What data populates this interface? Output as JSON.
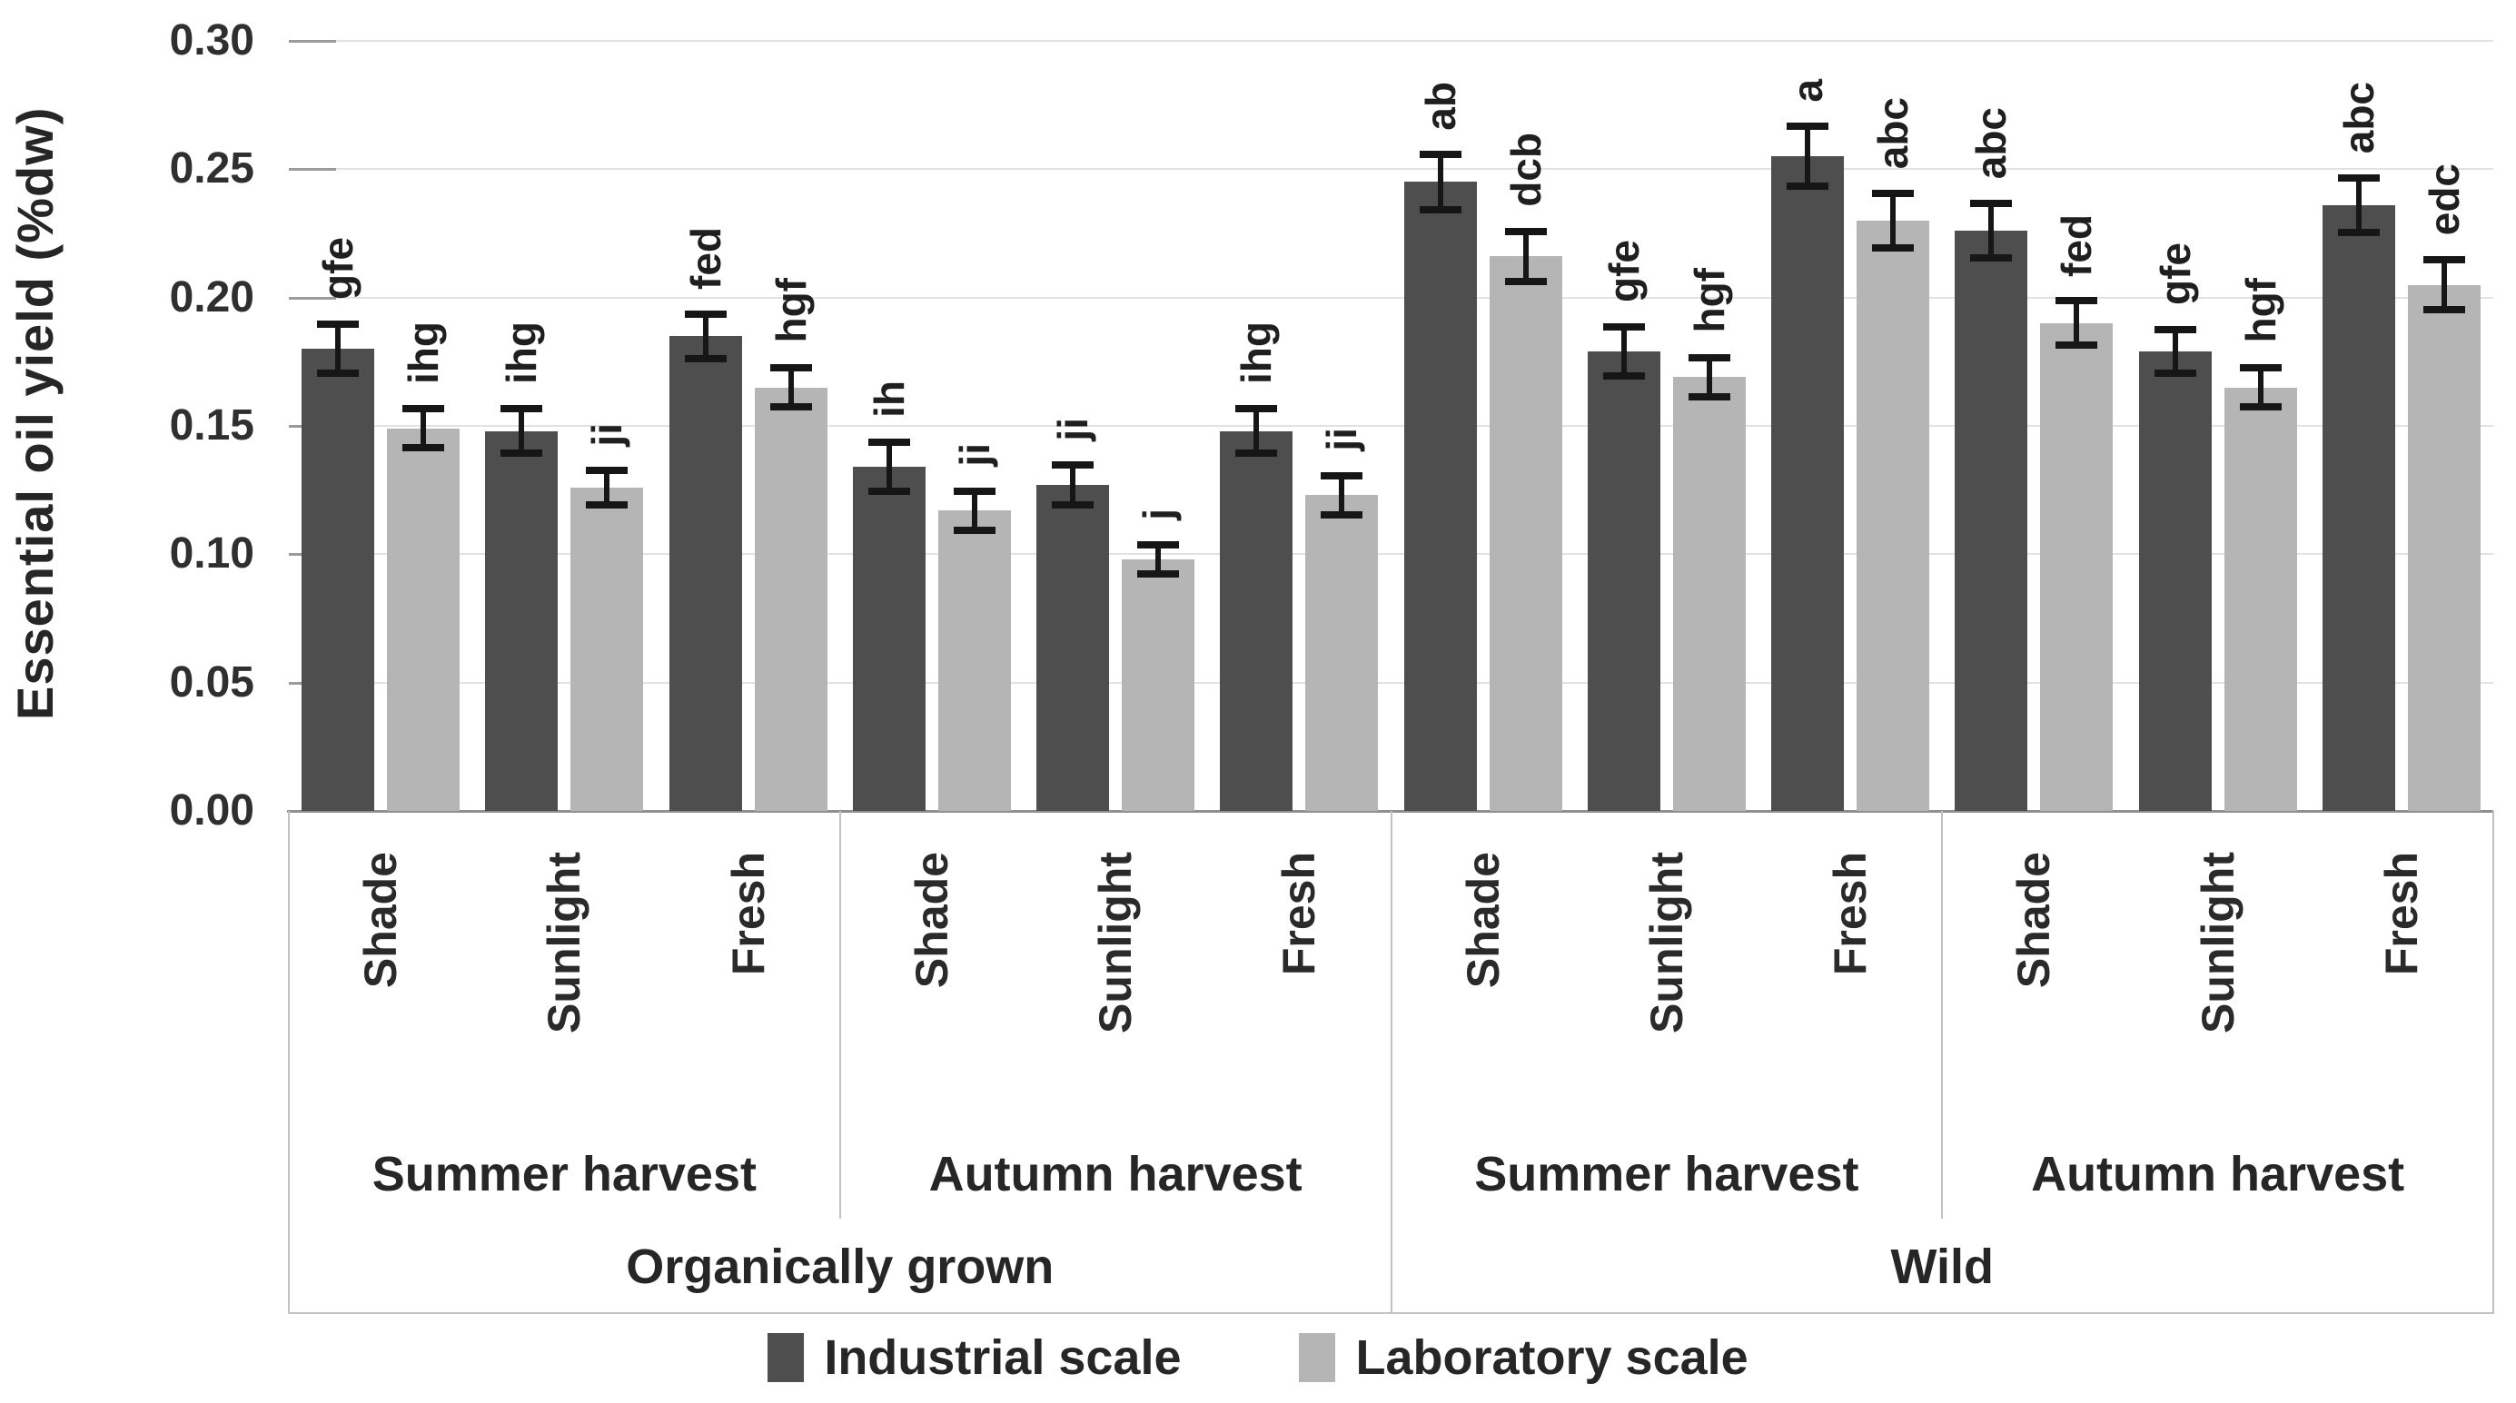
{
  "chart_data": {
    "type": "bar",
    "title": "",
    "xlabel": "",
    "ylabel": "Essential oil yield (%dw)",
    "ylim": [
      0,
      0.3
    ],
    "ytick_step": 0.05,
    "ytick_labels": [
      "0.00",
      "0.05",
      "0.10",
      "0.15",
      "0.20",
      "0.25",
      "0.30"
    ],
    "grid": true,
    "legend_position": "bottom",
    "categories": [
      "Shade",
      "Sunlight",
      "Fresh",
      "Shade",
      "Sunlight",
      "Fresh",
      "Shade",
      "Sunlight",
      "Fresh",
      "Shade",
      "Sunlight",
      "Fresh"
    ],
    "group_level_1": [
      {
        "label": "Summer harvest",
        "span": 3
      },
      {
        "label": "Autumn harvest",
        "span": 3
      },
      {
        "label": "Summer harvest",
        "span": 3
      },
      {
        "label": "Autumn harvest",
        "span": 3
      }
    ],
    "group_level_2": [
      {
        "label": "Organically grown",
        "span": 6
      },
      {
        "label": "Wild",
        "span": 6
      }
    ],
    "series": [
      {
        "name": "Industrial scale",
        "color": "#4e4e4e",
        "values": [
          0.18,
          0.148,
          0.185,
          0.134,
          0.127,
          0.148,
          0.245,
          0.179,
          0.255,
          0.226,
          0.179,
          0.236
        ],
        "errors": [
          0.01,
          0.009,
          0.009,
          0.01,
          0.008,
          0.009,
          0.011,
          0.01,
          0.012,
          0.011,
          0.009,
          0.011
        ],
        "letters": [
          "gfe",
          "ihg",
          "fed",
          "ih",
          "ji",
          "ihg",
          "ab",
          "gfe",
          "a",
          "abc",
          "gfe",
          "abc"
        ]
      },
      {
        "name": "Laboratory scale",
        "color": "#b5b5b5",
        "values": [
          0.149,
          0.126,
          0.165,
          0.117,
          0.098,
          0.123,
          0.216,
          0.169,
          0.23,
          0.19,
          0.165,
          0.205
        ],
        "errors": [
          0.008,
          0.007,
          0.008,
          0.008,
          0.006,
          0.008,
          0.01,
          0.008,
          0.011,
          0.009,
          0.008,
          0.01
        ],
        "letters": [
          "ihg",
          "ji",
          "hgf",
          "ji",
          "j",
          "ji",
          "dcb",
          "hgf",
          "abc",
          "fed",
          "hgf",
          "edc"
        ]
      }
    ]
  },
  "legend": {
    "items": [
      {
        "label": "Industrial scale",
        "color": "#4e4e4e"
      },
      {
        "label": "Laboratory scale",
        "color": "#b5b5b5"
      }
    ]
  },
  "colors": {
    "industrial": "#4e4e4e",
    "laboratory": "#b5b5b5",
    "gridline": "#e2e2e2",
    "axis": "#8f8f8f",
    "tick": "#9a9a9a",
    "frame": "#c2c2c2",
    "error_bar": "#161616",
    "text": "#262626",
    "background": "#ffffff"
  }
}
